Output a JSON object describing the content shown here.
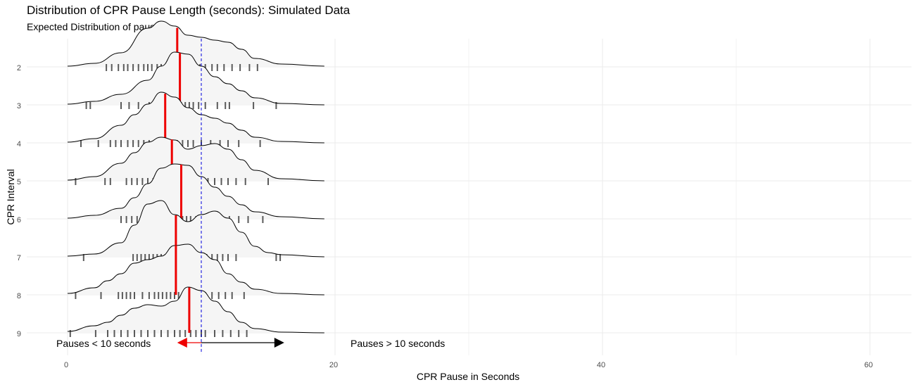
{
  "chart_data": {
    "type": "ridgeline",
    "title": "Distribution of CPR Pause Length (seconds): Simulated Data",
    "subtitle": "Expected Distribution of pauses",
    "xlabel": "CPR Pause in Seconds",
    "ylabel": "CPR Interval",
    "xlim": [
      0,
      62
    ],
    "x_ticks": [
      0,
      20,
      40,
      60
    ],
    "reference_line_x": 10,
    "grid": true,
    "annotations": {
      "left_text": "Pauses < 10 seconds",
      "right_text": "Pauses > 10 seconds",
      "arrow_left_to": 8.2,
      "arrow_right_to": 16.2
    },
    "series": [
      {
        "interval": "2",
        "median": 8.2,
        "density": [
          [
            0,
            0.01
          ],
          [
            2,
            0.05
          ],
          [
            4,
            0.2
          ],
          [
            6,
            0.55
          ],
          [
            7,
            0.65
          ],
          [
            8,
            0.58
          ],
          [
            9,
            0.45
          ],
          [
            10,
            0.42
          ],
          [
            11,
            0.38
          ],
          [
            12,
            0.35
          ],
          [
            13,
            0.25
          ],
          [
            14,
            0.12
          ],
          [
            16,
            0.04
          ],
          [
            19.2,
            0.01
          ]
        ],
        "rugs": [
          2.9,
          3.3,
          3.8,
          4.2,
          4.5,
          4.9,
          5.3,
          5.7,
          6.0,
          6.3,
          6.7,
          7.0,
          7.3,
          7.6,
          7.9,
          8.2,
          8.5,
          8.8,
          9.1,
          9.5,
          9.9,
          10.3,
          10.8,
          11.2,
          11.7,
          12.3,
          12.9,
          13.6,
          14.2
        ]
      },
      {
        "interval": "3",
        "median": 8.4,
        "density": [
          [
            0,
            0.01
          ],
          [
            2,
            0.05
          ],
          [
            4,
            0.15
          ],
          [
            6,
            0.35
          ],
          [
            7,
            0.55
          ],
          [
            8,
            0.75
          ],
          [
            9,
            0.72
          ],
          [
            10,
            0.55
          ],
          [
            11,
            0.4
          ],
          [
            12,
            0.3
          ],
          [
            13,
            0.2
          ],
          [
            14,
            0.1
          ],
          [
            16,
            0.02
          ],
          [
            19.2,
            0.0
          ]
        ],
        "rugs": [
          1.4,
          1.7,
          4.0,
          4.6,
          5.3,
          6.1,
          6.6,
          7.0,
          7.3,
          7.6,
          7.9,
          8.2,
          8.5,
          8.8,
          9.1,
          9.4,
          9.8,
          10.3,
          11.2,
          11.8,
          12.1,
          13.9,
          15.6
        ]
      },
      {
        "interval": "4",
        "median": 7.3,
        "density": [
          [
            0,
            0.01
          ],
          [
            2,
            0.06
          ],
          [
            4,
            0.25
          ],
          [
            5,
            0.4
          ],
          [
            6,
            0.55
          ],
          [
            7,
            0.72
          ],
          [
            8,
            0.65
          ],
          [
            9,
            0.5
          ],
          [
            10,
            0.4
          ],
          [
            11,
            0.35
          ],
          [
            12,
            0.28
          ],
          [
            13,
            0.18
          ],
          [
            14,
            0.08
          ],
          [
            16,
            0.02
          ],
          [
            19.2,
            0.0
          ]
        ],
        "rugs": [
          1.0,
          2.3,
          3.2,
          3.6,
          4.0,
          4.5,
          4.9,
          5.3,
          5.7,
          6.1,
          6.5,
          6.8,
          7.1,
          7.4,
          7.8,
          8.2,
          8.6,
          9.0,
          9.4,
          10.0,
          10.7,
          11.4,
          12.0,
          12.8,
          14.4
        ]
      },
      {
        "interval": "5",
        "median": 7.8,
        "density": [
          [
            0,
            0.01
          ],
          [
            2,
            0.06
          ],
          [
            4,
            0.25
          ],
          [
            5,
            0.4
          ],
          [
            6,
            0.55
          ],
          [
            7,
            0.62
          ],
          [
            8,
            0.58
          ],
          [
            9,
            0.45
          ],
          [
            10,
            0.5
          ],
          [
            11,
            0.53
          ],
          [
            12,
            0.45
          ],
          [
            13,
            0.3
          ],
          [
            14,
            0.15
          ],
          [
            16,
            0.03
          ],
          [
            19.2,
            0.0
          ]
        ],
        "rugs": [
          0.6,
          2.8,
          3.2,
          4.4,
          4.8,
          5.2,
          5.6,
          6.0,
          6.4,
          6.8,
          7.2,
          7.6,
          8.0,
          8.5,
          9.0,
          9.5,
          10.0,
          10.5,
          11.0,
          11.5,
          12.0,
          12.6,
          13.3,
          15.0
        ]
      },
      {
        "interval": "6",
        "median": 8.5,
        "density": [
          [
            0,
            0.01
          ],
          [
            2,
            0.05
          ],
          [
            4,
            0.15
          ],
          [
            5,
            0.3
          ],
          [
            6,
            0.5
          ],
          [
            7,
            0.72
          ],
          [
            8,
            0.78
          ],
          [
            9,
            0.76
          ],
          [
            10,
            0.6
          ],
          [
            11,
            0.45
          ],
          [
            12,
            0.32
          ],
          [
            13,
            0.2
          ],
          [
            14,
            0.1
          ],
          [
            16,
            0.03
          ],
          [
            19.2,
            0.0
          ]
        ],
        "rugs": [
          4.0,
          4.4,
          4.8,
          5.2,
          5.6,
          6.0,
          6.4,
          6.8,
          7.1,
          7.4,
          7.7,
          8.0,
          8.3,
          8.6,
          8.9,
          9.2,
          9.6,
          10.0,
          10.5,
          11.0,
          11.5,
          12.1,
          12.8,
          13.5,
          14.6
        ]
      },
      {
        "interval": "7",
        "median": 8.1,
        "density": [
          [
            0,
            0.01
          ],
          [
            2,
            0.04
          ],
          [
            4,
            0.2
          ],
          [
            5,
            0.45
          ],
          [
            6,
            0.75
          ],
          [
            7,
            0.8
          ],
          [
            8,
            0.6
          ],
          [
            9,
            0.5
          ],
          [
            10,
            0.6
          ],
          [
            11,
            0.65
          ],
          [
            12,
            0.55
          ],
          [
            13,
            0.35
          ],
          [
            14,
            0.15
          ],
          [
            15,
            0.06
          ],
          [
            16,
            0.03
          ],
          [
            19.2,
            0.0
          ]
        ],
        "rugs": [
          1.2,
          4.9,
          5.2,
          5.5,
          5.8,
          6.1,
          6.4,
          6.7,
          7.0,
          7.3,
          7.6,
          7.9,
          8.2,
          8.5,
          8.8,
          9.2,
          9.6,
          10.0,
          10.4,
          10.8,
          11.2,
          11.6,
          12.0,
          12.6,
          15.6,
          15.9
        ]
      },
      {
        "interval": "8",
        "median": 8.1,
        "density": [
          [
            0,
            0.02
          ],
          [
            2,
            0.1
          ],
          [
            3,
            0.2
          ],
          [
            4,
            0.3
          ],
          [
            5,
            0.45
          ],
          [
            6,
            0.5
          ],
          [
            7,
            0.55
          ],
          [
            8,
            0.7
          ],
          [
            9,
            0.72
          ],
          [
            10,
            0.6
          ],
          [
            11,
            0.5
          ],
          [
            12,
            0.3
          ],
          [
            13,
            0.18
          ],
          [
            14,
            0.08
          ],
          [
            16,
            0.02
          ],
          [
            19.2,
            0.0
          ]
        ],
        "rugs": [
          0.6,
          2.5,
          3.8,
          4.1,
          4.4,
          4.7,
          5.0,
          5.6,
          6.1,
          6.5,
          6.8,
          7.1,
          7.4,
          7.7,
          8.0,
          8.3,
          8.6,
          9.0,
          9.4,
          9.8,
          10.3,
          10.8,
          11.3,
          11.8,
          12.3,
          13.2
        ]
      },
      {
        "interval": "9",
        "median": 9.1,
        "density": [
          [
            0,
            0.02
          ],
          [
            2,
            0.1
          ],
          [
            3,
            0.15
          ],
          [
            4,
            0.25
          ],
          [
            5,
            0.35
          ],
          [
            6,
            0.4
          ],
          [
            7,
            0.38
          ],
          [
            8,
            0.45
          ],
          [
            9,
            0.65
          ],
          [
            10,
            0.6
          ],
          [
            11,
            0.45
          ],
          [
            12,
            0.3
          ],
          [
            13,
            0.15
          ],
          [
            14,
            0.06
          ],
          [
            16,
            0.01
          ],
          [
            19.2,
            0.0
          ]
        ],
        "rugs": [
          0.2,
          2.1,
          3.0,
          3.5,
          4.0,
          4.5,
          5.0,
          5.5,
          6.0,
          6.5,
          7.0,
          7.5,
          8.0,
          8.4,
          8.8,
          9.2,
          9.6,
          10.0,
          10.3,
          11.0,
          11.6,
          12.2,
          12.8,
          13.4
        ]
      }
    ]
  }
}
